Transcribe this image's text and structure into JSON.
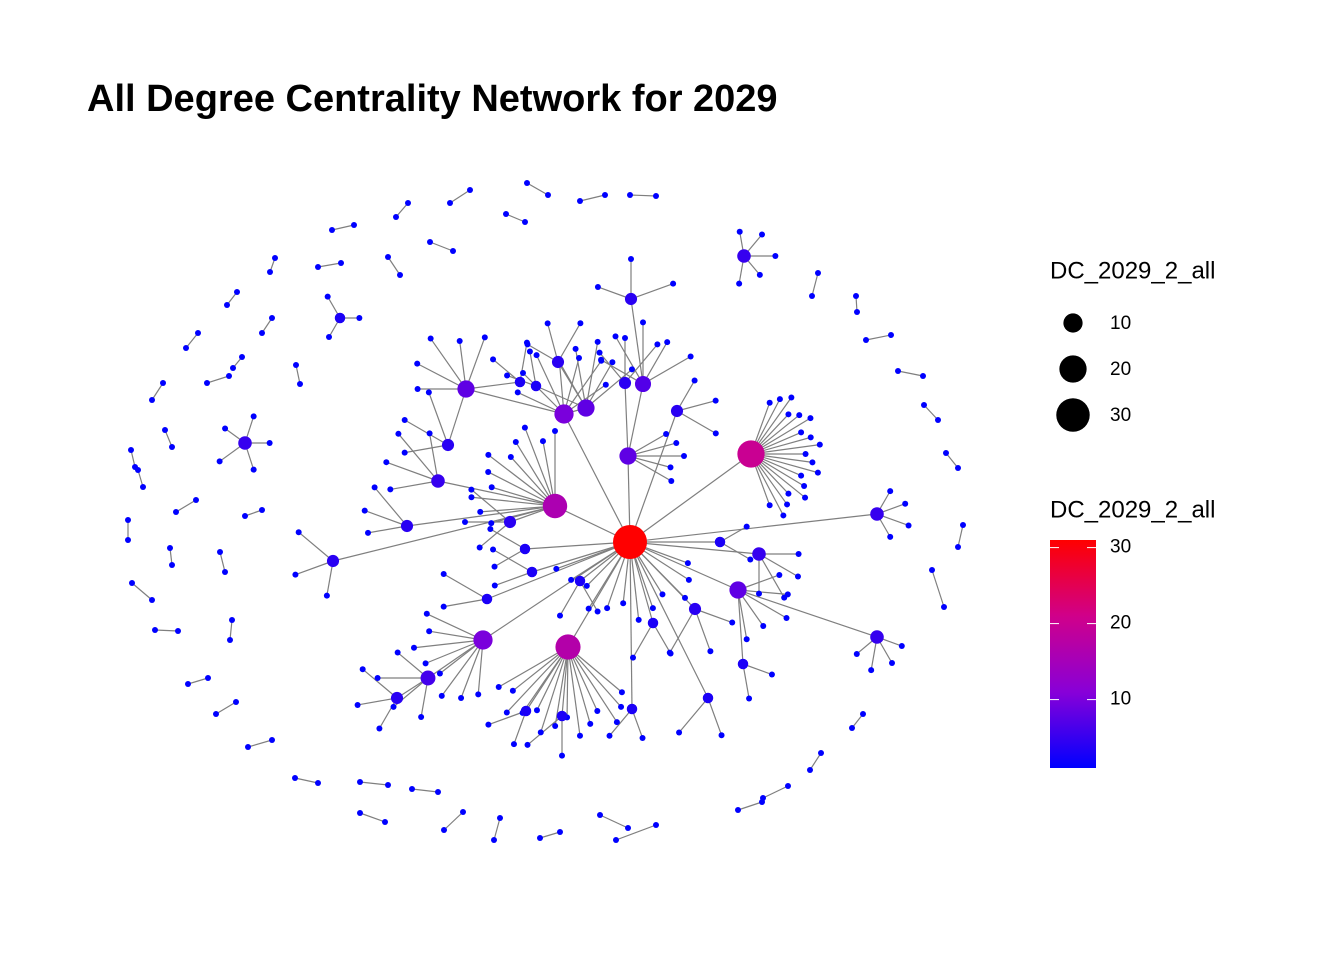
{
  "chart_data": {
    "type": "network",
    "title": "All Degree Centrality Network for 2029",
    "size_legend": {
      "title": "DC_2029_2_all",
      "values": [
        10,
        20,
        30
      ]
    },
    "color_legend": {
      "title": "DC_2029_2_all",
      "lim": [
        1,
        31
      ],
      "ticks": [
        10,
        20,
        30
      ],
      "colors": [
        "#0000ff",
        "#8800d8",
        "#d0008a",
        "#ff0000"
      ]
    },
    "edge_color": "#7f7f7f",
    "hubs": [
      {
        "degree": 31,
        "leaf_degrees": [
          1,
          1,
          1,
          1,
          1,
          1,
          1,
          1,
          1,
          1,
          1,
          1
        ]
      },
      {
        "degree": 20,
        "leaf_degrees": [
          1,
          1,
          1,
          1,
          1,
          1,
          1,
          1,
          1,
          1,
          1,
          1,
          1,
          1,
          1,
          1,
          1,
          1,
          1
        ]
      },
      {
        "degree": 17,
        "leaf_degrees": [
          1,
          1,
          1,
          1,
          1,
          1,
          1,
          1,
          1,
          1,
          1,
          1,
          1,
          1
        ]
      },
      {
        "degree": 16,
        "leaf_degrees": [
          1,
          1,
          1,
          1,
          1,
          1,
          1,
          1,
          1,
          1,
          1
        ]
      },
      {
        "degree": 10,
        "leaf_degrees": [
          1,
          1,
          1,
          1,
          1,
          1,
          1,
          1
        ]
      },
      {
        "degree": 10,
        "leaf_degrees": [
          1,
          1,
          1,
          1,
          1,
          1,
          1
        ]
      },
      {
        "degree": 8,
        "leaf_degrees": [
          1,
          1,
          1,
          1,
          1
        ]
      },
      {
        "degree": 8,
        "leaf_degrees": [
          1,
          1,
          1,
          1,
          1
        ]
      },
      {
        "degree": 7,
        "leaf_degrees": [
          1,
          1,
          1,
          1,
          1
        ]
      },
      {
        "degree": 8,
        "leaf_degrees": [
          1,
          1,
          1,
          1,
          1
        ]
      },
      {
        "degree": 5,
        "leaf_degrees": [
          1,
          1,
          1,
          1
        ]
      },
      {
        "degree": 5,
        "leaf_degrees": [
          1,
          1,
          1,
          1
        ]
      },
      {
        "degree": 5,
        "leaf_degrees": [
          1,
          1,
          1,
          1,
          1
        ]
      },
      {
        "degree": 5,
        "leaf_degrees": [
          1,
          1,
          1,
          1,
          1
        ]
      },
      {
        "degree": 5,
        "leaf_degrees": [
          1,
          1,
          1,
          1
        ]
      },
      {
        "degree": 8,
        "leaf_degrees": [
          1,
          1,
          1,
          1,
          1
        ]
      },
      {
        "degree": 6,
        "leaf_degrees": [
          1,
          1,
          1,
          1
        ]
      },
      {
        "degree": 4,
        "leaf_degrees": [
          1,
          1,
          1
        ]
      },
      {
        "degree": 4,
        "leaf_degrees": [
          1,
          1,
          1
        ]
      },
      {
        "degree": 4,
        "leaf_degrees": [
          1,
          1,
          1
        ]
      },
      {
        "degree": 5,
        "leaf_degrees": [
          1,
          1,
          1,
          1
        ]
      },
      {
        "degree": 4,
        "leaf_degrees": [
          1,
          1,
          1
        ]
      },
      {
        "degree": 4,
        "leaf_degrees": [
          1,
          1,
          1
        ]
      },
      {
        "degree": 4,
        "leaf_degrees": [
          1,
          1,
          1
        ]
      },
      {
        "degree": 4,
        "leaf_degrees": [
          1,
          1,
          1
        ]
      },
      {
        "degree": 4,
        "leaf_degrees": [
          1,
          1,
          1
        ]
      },
      {
        "degree": 3,
        "leaf_degrees": [
          1,
          1,
          1
        ]
      },
      {
        "degree": 3,
        "leaf_degrees": [
          1,
          1
        ]
      },
      {
        "degree": 3,
        "leaf_degrees": [
          1,
          1
        ]
      },
      {
        "degree": 3,
        "leaf_degrees": [
          1,
          1
        ]
      },
      {
        "degree": 3,
        "leaf_degrees": [
          1,
          1
        ]
      },
      {
        "degree": 3,
        "leaf_degrees": [
          1,
          1
        ]
      },
      {
        "degree": 3,
        "leaf_degrees": [
          1,
          1
        ]
      },
      {
        "degree": 3,
        "leaf_degrees": [
          1,
          1
        ]
      },
      {
        "degree": 3,
        "leaf_degrees": [
          1,
          1
        ]
      },
      {
        "degree": 3,
        "leaf_degrees": [
          1,
          1
        ]
      },
      {
        "degree": 3,
        "leaf_degrees": [
          1,
          1
        ]
      },
      {
        "degree": 3,
        "leaf_degrees": [
          1,
          1
        ]
      },
      {
        "degree": 4,
        "leaf_degrees": [
          1,
          1,
          1
        ]
      },
      {
        "degree": 3,
        "leaf_degrees": [
          1,
          1
        ]
      },
      {
        "degree": 3,
        "leaf_degrees": [
          1,
          1
        ]
      },
      {
        "degree": 4,
        "leaf_degrees": [
          1,
          1,
          1
        ]
      }
    ],
    "pairs": [
      [
        1,
        1
      ],
      [
        1,
        1
      ],
      [
        1,
        1
      ],
      [
        1,
        1
      ],
      [
        1,
        1
      ],
      [
        1,
        1
      ],
      [
        1,
        1
      ],
      [
        1,
        1
      ],
      [
        1,
        1
      ],
      [
        1,
        1
      ],
      [
        1,
        1
      ],
      [
        1,
        1
      ],
      [
        1,
        1
      ],
      [
        1,
        1
      ],
      [
        1,
        1
      ],
      [
        1,
        1
      ],
      [
        1,
        1
      ],
      [
        1,
        1
      ],
      [
        1,
        1
      ],
      [
        1,
        1
      ],
      [
        1,
        1
      ],
      [
        1,
        1
      ],
      [
        1,
        1
      ],
      [
        1,
        1
      ],
      [
        1,
        1
      ],
      [
        1,
        1
      ],
      [
        1,
        1
      ],
      [
        1,
        1
      ],
      [
        1,
        1
      ],
      [
        1,
        1
      ],
      [
        1,
        1
      ],
      [
        1,
        1
      ],
      [
        1,
        1
      ],
      [
        1,
        1
      ],
      [
        1,
        1
      ],
      [
        1,
        1
      ],
      [
        1,
        1
      ],
      [
        1,
        1
      ],
      [
        1,
        1
      ],
      [
        1,
        1
      ],
      [
        1,
        1
      ],
      [
        1,
        1
      ],
      [
        1,
        1
      ],
      [
        1,
        1
      ],
      [
        1,
        1
      ],
      [
        1,
        1
      ],
      [
        1,
        1
      ],
      [
        1,
        1
      ],
      [
        1,
        1
      ],
      [
        1,
        1
      ],
      [
        1,
        1
      ],
      [
        1,
        1
      ],
      [
        1,
        1
      ]
    ]
  }
}
